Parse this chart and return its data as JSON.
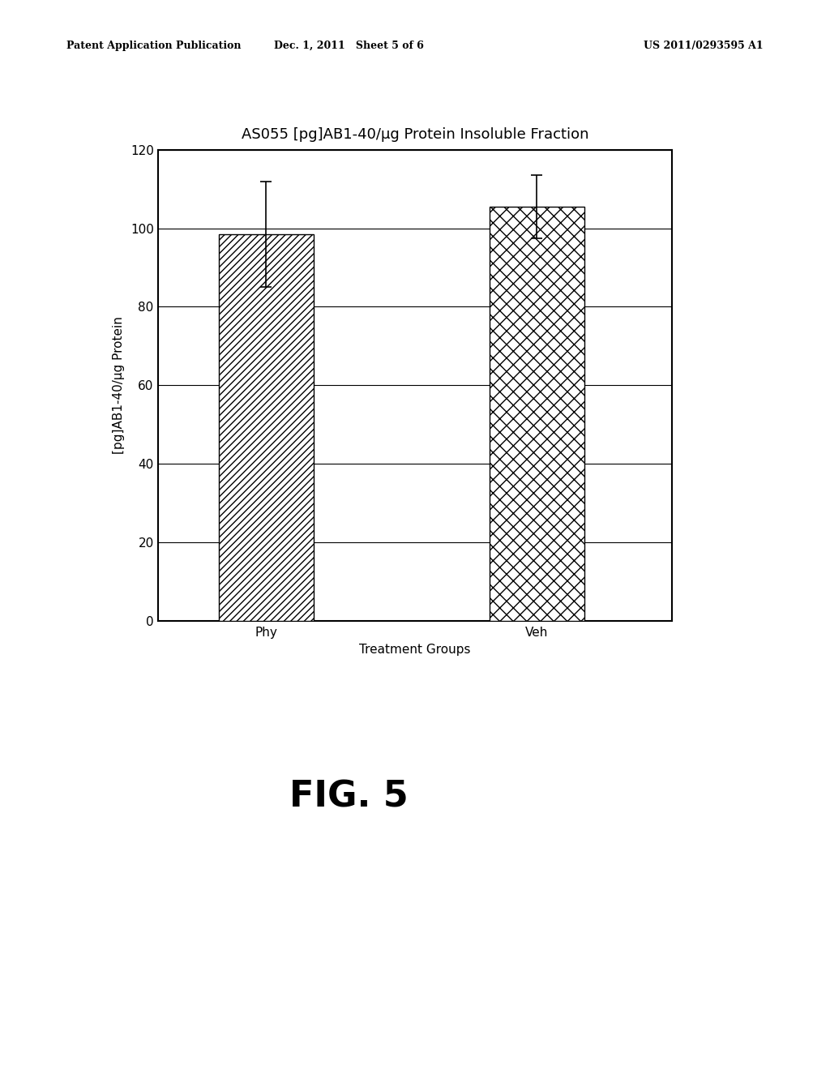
{
  "title": "AS055 [pg]AB1-40/μg Protein Insoluble Fraction",
  "xlabel": "Treatment Groups",
  "ylabel": "[pg]AB1-40/μg Protein",
  "categories": [
    "Phy",
    "Veh"
  ],
  "values": [
    98.5,
    105.5
  ],
  "errors": [
    13.5,
    8.0
  ],
  "ylim": [
    0,
    120
  ],
  "yticks": [
    0,
    20,
    40,
    60,
    80,
    100,
    120
  ],
  "bar_width": 0.35,
  "bar_positions": [
    1.0,
    2.0
  ],
  "background_color": "#ffffff",
  "header_left": "Patent Application Publication",
  "header_mid": "Dec. 1, 2011   Sheet 5 of 6",
  "header_right": "US 2011/0293595 A1",
  "figure_label": "FIG. 5",
  "title_fontsize": 13,
  "axis_fontsize": 11,
  "tick_fontsize": 11,
  "header_fontsize": 9,
  "fig_label_fontsize": 32
}
